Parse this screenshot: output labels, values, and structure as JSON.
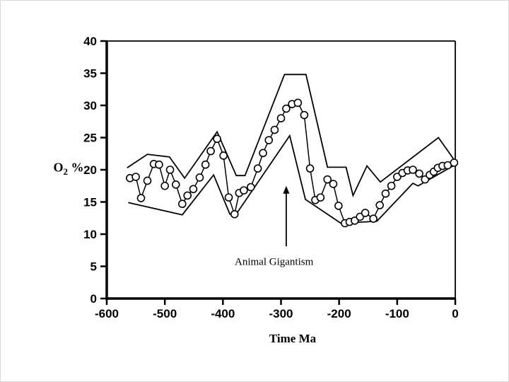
{
  "figure": {
    "background": "#ffffff",
    "line_color": "#000000",
    "marker_fill": "#ffffff"
  },
  "labels": {
    "x_axis": "Time Ma",
    "y_axis_main": "O",
    "y_axis_sub": "2",
    "y_axis_suffix": " %",
    "annotation": "Animal Gigantism"
  },
  "chart_data": {
    "type": "line",
    "title": "",
    "xlabel": "Time Ma",
    "ylabel": "O2 %",
    "xlim": [
      -600,
      0
    ],
    "ylim": [
      0,
      40
    ],
    "x_tick_values": [
      -600,
      -500,
      -400,
      -300,
      -200,
      -100,
      0
    ],
    "x_tick_labels": [
      "-600",
      "-500",
      "-400",
      "-300",
      "-200",
      "-100",
      "0"
    ],
    "y_tick_values": [
      0,
      5,
      10,
      15,
      20,
      25,
      30,
      35,
      40
    ],
    "y_tick_labels": [
      "0",
      "5",
      "10",
      "15",
      "20",
      "25",
      "30",
      "35",
      "40"
    ],
    "grid": false,
    "legend": "none",
    "series": [
      {
        "name": "upper-bound",
        "marker": "none",
        "width": 1.8,
        "points": [
          [
            -565,
            20.3
          ],
          [
            -530,
            22.4
          ],
          [
            -492,
            22.0
          ],
          [
            -466,
            18.7
          ],
          [
            -410,
            25.9
          ],
          [
            -377,
            19.1
          ],
          [
            -362,
            19.1
          ],
          [
            -294,
            34.8
          ],
          [
            -257,
            34.8
          ],
          [
            -220,
            20.4
          ],
          [
            -188,
            20.4
          ],
          [
            -176,
            16.0
          ],
          [
            -152,
            20.6
          ],
          [
            -129,
            18.1
          ],
          [
            -29,
            25.0
          ],
          [
            0,
            21.3
          ]
        ]
      },
      {
        "name": "lower-bound",
        "marker": "none",
        "width": 1.8,
        "points": [
          [
            -563,
            14.9
          ],
          [
            -470,
            13.0
          ],
          [
            -416,
            19.2
          ],
          [
            -388,
            13.1
          ],
          [
            -378,
            13.0
          ],
          [
            -285,
            25.3
          ],
          [
            -258,
            15.4
          ],
          [
            -197,
            11.7
          ],
          [
            -135,
            12.0
          ],
          [
            -73,
            17.9
          ],
          [
            -64,
            17.5
          ],
          [
            0,
            20.8
          ]
        ]
      },
      {
        "name": "best-estimate",
        "marker": "circle",
        "width": 1.5,
        "points": [
          [
            -560,
            18.7
          ],
          [
            -550,
            18.9
          ],
          [
            -541,
            15.6
          ],
          [
            -530,
            18.3
          ],
          [
            -519,
            20.9
          ],
          [
            -510,
            20.8
          ],
          [
            -500,
            17.5
          ],
          [
            -491,
            20.0
          ],
          [
            -481,
            17.7
          ],
          [
            -470,
            14.7
          ],
          [
            -461,
            16.0
          ],
          [
            -451,
            17.0
          ],
          [
            -440,
            18.8
          ],
          [
            -430,
            20.8
          ],
          [
            -421,
            22.9
          ],
          [
            -410,
            24.8
          ],
          [
            -399,
            22.2
          ],
          [
            -390,
            15.7
          ],
          [
            -380,
            13.1
          ],
          [
            -372,
            16.4
          ],
          [
            -364,
            16.8
          ],
          [
            -352,
            17.3
          ],
          [
            -340,
            20.2
          ],
          [
            -331,
            22.6
          ],
          [
            -321,
            24.6
          ],
          [
            -311,
            26.2
          ],
          [
            -300,
            28.0
          ],
          [
            -291,
            29.5
          ],
          [
            -281,
            30.2
          ],
          [
            -271,
            30.4
          ],
          [
            -260,
            28.5
          ],
          [
            -250,
            20.2
          ],
          [
            -241,
            15.3
          ],
          [
            -232,
            15.7
          ],
          [
            -220,
            18.5
          ],
          [
            -210,
            17.8
          ],
          [
            -201,
            14.4
          ],
          [
            -190,
            11.7
          ],
          [
            -182,
            11.9
          ],
          [
            -173,
            12.1
          ],
          [
            -164,
            12.7
          ],
          [
            -155,
            13.3
          ],
          [
            -141,
            12.4
          ],
          [
            -130,
            14.5
          ],
          [
            -120,
            16.3
          ],
          [
            -110,
            17.5
          ],
          [
            -100,
            18.9
          ],
          [
            -91,
            19.5
          ],
          [
            -82,
            19.9
          ],
          [
            -73,
            20.0
          ],
          [
            -62,
            19.4
          ],
          [
            -52,
            18.5
          ],
          [
            -44,
            19.2
          ],
          [
            -37,
            19.7
          ],
          [
            -30,
            20.3
          ],
          [
            -22,
            20.6
          ],
          [
            -13,
            20.7
          ],
          [
            -2,
            21.1
          ]
        ]
      }
    ],
    "annotation": {
      "text": "Animal Gigantism",
      "arrow_ma": -291,
      "arrow_tip_o2": 17.5,
      "arrow_tail_o2": 8.1,
      "label_ma": -312,
      "label_o2": 5.6
    }
  }
}
